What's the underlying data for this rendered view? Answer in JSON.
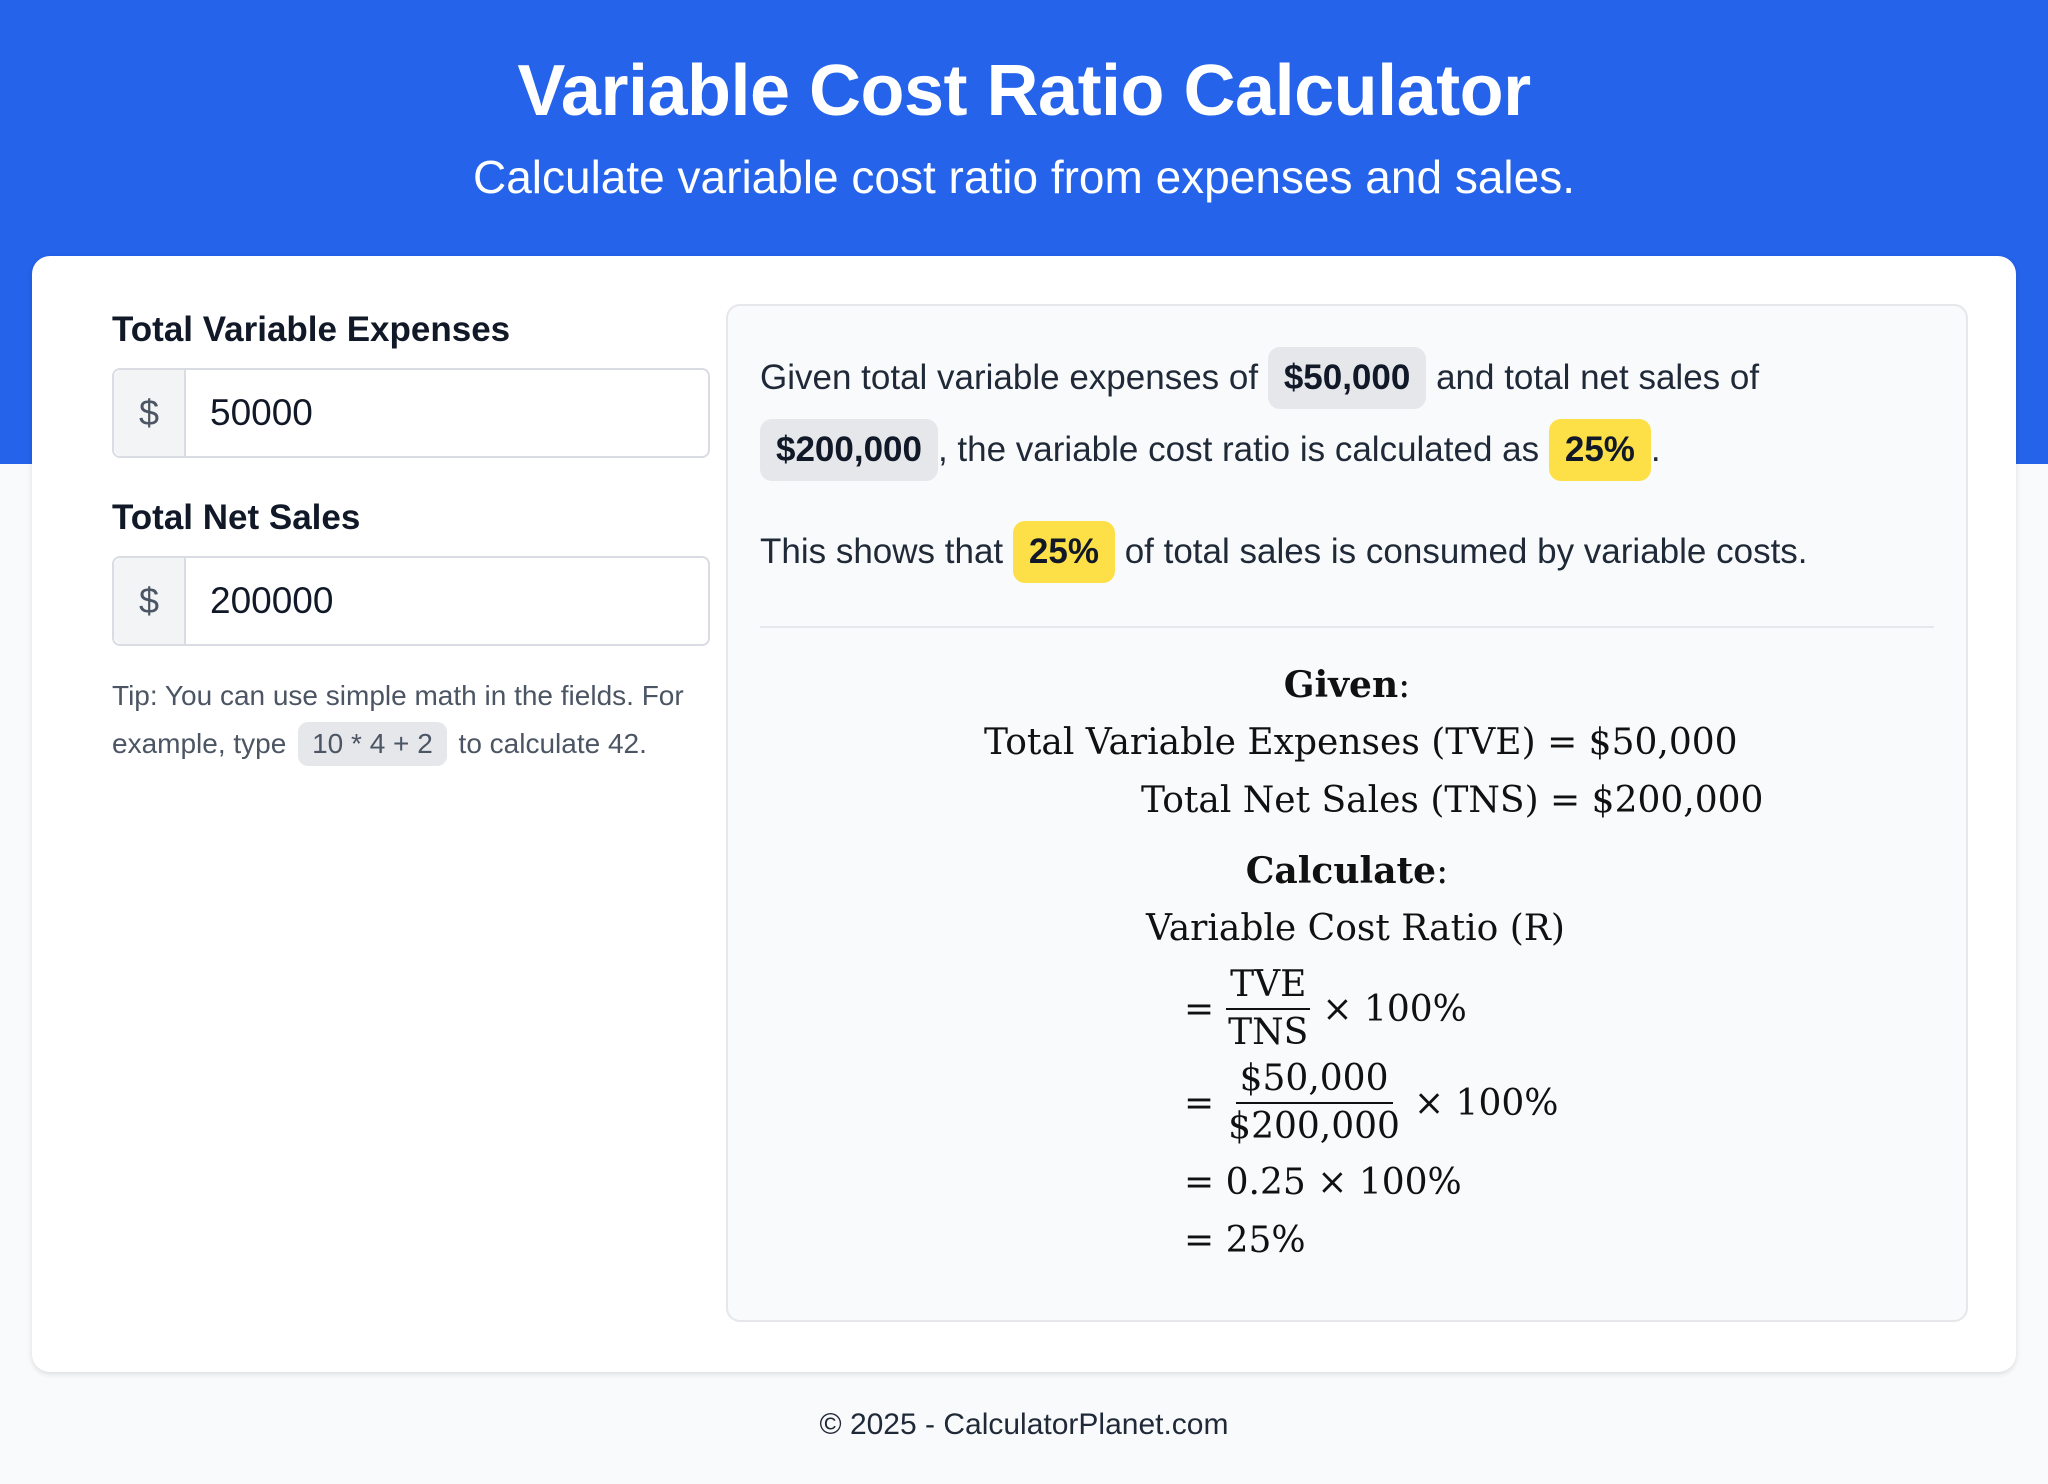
{
  "header": {
    "title": "Variable Cost Ratio Calculator",
    "subtitle": "Calculate variable cost ratio from expenses and sales."
  },
  "inputs": {
    "expenses": {
      "label": "Total Variable Expenses",
      "prefix": "$",
      "value": "50000"
    },
    "sales": {
      "label": "Total Net Sales",
      "prefix": "$",
      "value": "200000"
    }
  },
  "tip": {
    "before": "Tip: You can use simple math in the fields. For example, type",
    "code": "10 * 4 + 2",
    "after": "to calculate 42."
  },
  "summary": {
    "p1_a": "Given total variable expenses of",
    "expenses": "$50,000",
    "p1_b": "and total net sales of",
    "sales": "$200,000",
    "p1_c": ", the variable cost ratio is calculated as",
    "ratio": "25%",
    "p1_d": ".",
    "p2_a": "This shows that",
    "p2_ratio": "25%",
    "p2_b": "of total sales is consumed by variable costs."
  },
  "math": {
    "given_heading": "Given",
    "given_line1": "Total Variable Expenses (TVE) = $50,000",
    "given_line2": "Total Net Sales (TNS) = $200,000",
    "calc_heading": "Calculate",
    "calc_title": "Variable Cost Ratio (R)",
    "step1_num": "TVE",
    "step1_den": "TNS",
    "step1_tail": "× 100%",
    "step2_num": "$50,000",
    "step2_den": "$200,000",
    "step2_tail": "× 100%",
    "step3": "= 0.25 × 100%",
    "step4": "= 25%"
  },
  "footer": {
    "text": "© 2025 - CalculatorPlanet.com"
  }
}
